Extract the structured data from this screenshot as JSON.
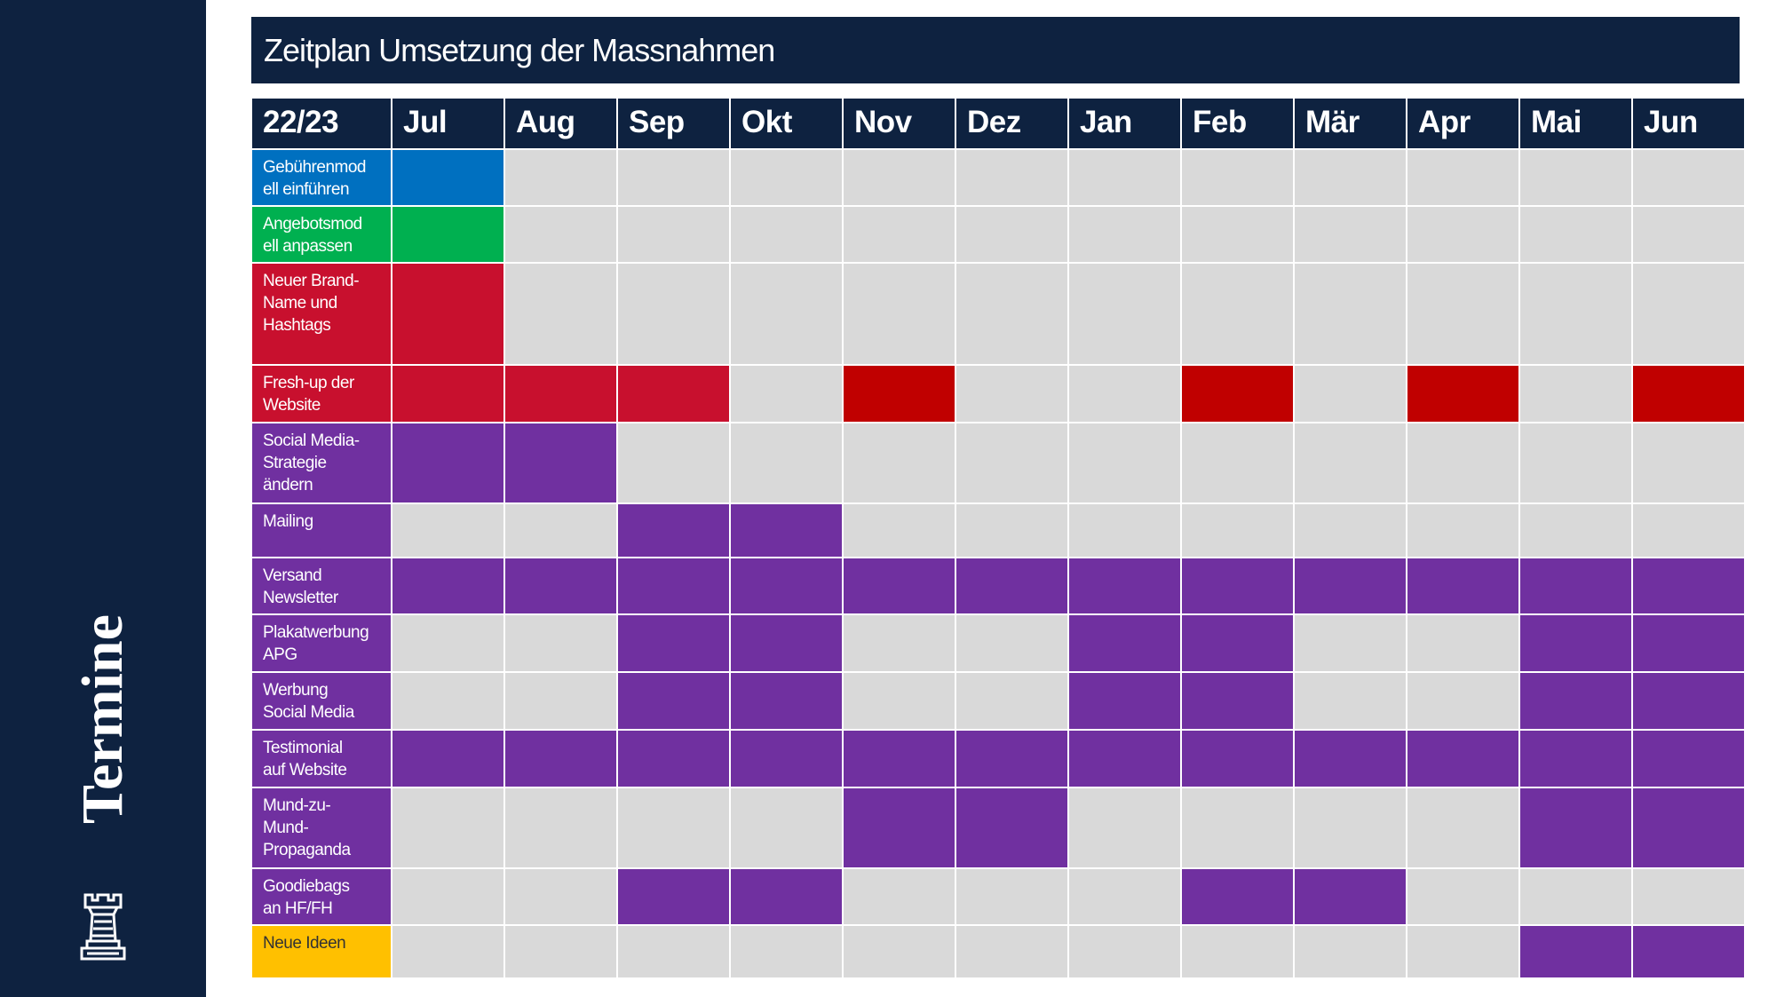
{
  "sidebar": {
    "title": "Termine"
  },
  "header": {
    "title": "Zeitplan Umsetzung der Massnahmen"
  },
  "colors": {
    "blue": "#0070c0",
    "green": "#00b050",
    "red": "#c8102e",
    "darkred": "#c00000",
    "purple": "#7030a0",
    "yellow": "#ffc000"
  },
  "table": {
    "columns": [
      "22/23",
      "Jul",
      "Aug",
      "Sep",
      "Okt",
      "Nov",
      "Dez",
      "Jan",
      "Feb",
      "Mär",
      "Apr",
      "Mai",
      "Jun"
    ],
    "rows": [
      {
        "label": "Gebührenmod\nell einführen",
        "color": "blue",
        "months": [
          "blue",
          null,
          null,
          null,
          null,
          null,
          null,
          null,
          null,
          null,
          null,
          null
        ]
      },
      {
        "label": "Angebotsmod\nell anpassen",
        "color": "green",
        "months": [
          "green",
          null,
          null,
          null,
          null,
          null,
          null,
          null,
          null,
          null,
          null,
          null
        ]
      },
      {
        "label": "Neuer Brand-\nName und\nHashtags",
        "color": "red",
        "months": [
          "red",
          null,
          null,
          null,
          null,
          null,
          null,
          null,
          null,
          null,
          null,
          null
        ]
      },
      {
        "label": "Fresh-up der\nWebsite",
        "color": "red",
        "months": [
          "red",
          "red",
          "red",
          null,
          "darkred",
          null,
          null,
          "darkred",
          null,
          "darkred",
          null,
          "darkred"
        ]
      },
      {
        "label": "Social Media-\nStrategie\nändern",
        "color": "purple",
        "months": [
          "purple",
          "purple",
          null,
          null,
          null,
          null,
          null,
          null,
          null,
          null,
          null,
          null
        ]
      },
      {
        "label": "Mailing",
        "color": "purple",
        "months": [
          null,
          null,
          "purple",
          "purple",
          null,
          null,
          null,
          null,
          null,
          null,
          null,
          null
        ]
      },
      {
        "label": "Versand\nNewsletter",
        "color": "purple",
        "months": [
          "purple",
          "purple",
          "purple",
          "purple",
          "purple",
          "purple",
          "purple",
          "purple",
          "purple",
          "purple",
          "purple",
          "purple"
        ]
      },
      {
        "label": "Plakatwerbung\nAPG",
        "color": "purple",
        "months": [
          null,
          null,
          "purple",
          "purple",
          null,
          null,
          "purple",
          "purple",
          null,
          null,
          "purple",
          "purple"
        ]
      },
      {
        "label": "Werbung\nSocial Media",
        "color": "purple",
        "months": [
          null,
          null,
          "purple",
          "purple",
          null,
          null,
          "purple",
          "purple",
          null,
          null,
          "purple",
          "purple"
        ]
      },
      {
        "label": "Testimonial\nauf Website",
        "color": "purple",
        "months": [
          "purple",
          "purple",
          "purple",
          "purple",
          "purple",
          "purple",
          "purple",
          "purple",
          "purple",
          "purple",
          "purple",
          "purple"
        ]
      },
      {
        "label": "Mund-zu-\nMund-\nPropaganda",
        "color": "purple",
        "months": [
          null,
          null,
          null,
          null,
          "purple",
          "purple",
          null,
          null,
          null,
          null,
          "purple",
          "purple"
        ]
      },
      {
        "label": "Goodiebags\nan HF/FH",
        "color": "purple",
        "months": [
          null,
          null,
          "purple",
          "purple",
          null,
          null,
          null,
          "purple",
          "purple",
          null,
          null,
          null
        ]
      },
      {
        "label": "Neue Ideen",
        "color": "yellow",
        "months": [
          null,
          null,
          null,
          null,
          null,
          null,
          null,
          null,
          null,
          null,
          "purple",
          "purple"
        ]
      }
    ]
  }
}
